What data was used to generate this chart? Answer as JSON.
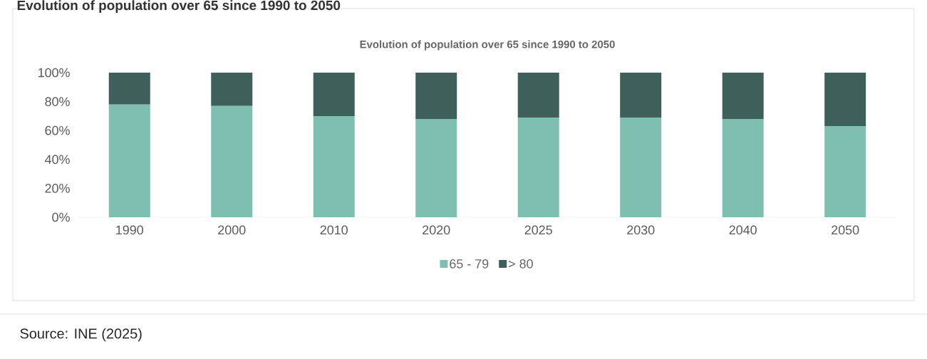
{
  "chart_data": {
    "type": "bar",
    "stacked": true,
    "title": "Evolution of population over 65 since 1990 to 2050",
    "annotations": [
      "Evolution of population over 65 since 1990 to 2050",
      "Source: INE (2025)"
    ],
    "categories": [
      "1990",
      "2000",
      "2010",
      "2020",
      "2025",
      "2030",
      "2040",
      "2050"
    ],
    "series": [
      {
        "name": "65 - 79",
        "color": "#7fbfb1",
        "values": [
          78,
          77,
          70,
          68,
          69,
          69,
          68,
          63
        ]
      },
      {
        "name": "> 80",
        "color": "#3e5f5a",
        "values": [
          22,
          23,
          30,
          32,
          31,
          31,
          32,
          37
        ]
      }
    ],
    "ylim": [
      0,
      100
    ],
    "yticks": [
      {
        "value": 0,
        "label": "0%"
      },
      {
        "value": 20,
        "label": "20%"
      },
      {
        "value": 40,
        "label": "40%"
      },
      {
        "value": 60,
        "label": "60%"
      },
      {
        "value": 80,
        "label": "80%"
      },
      {
        "value": 100,
        "label": "100%"
      }
    ],
    "grid": false,
    "legend": "bottom"
  }
}
